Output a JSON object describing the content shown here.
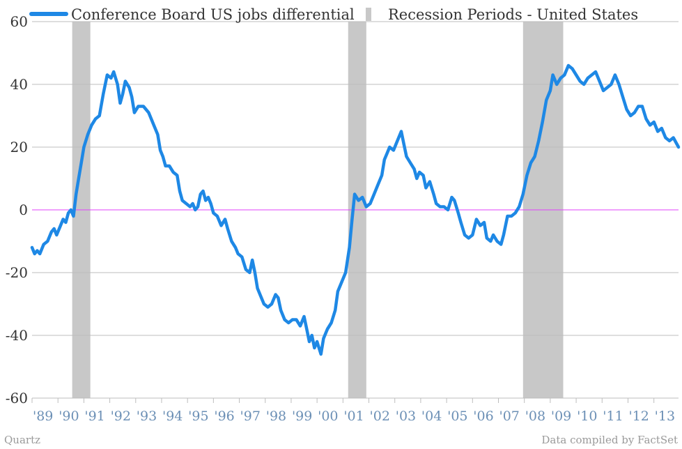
{
  "chart_data": {
    "type": "line",
    "legend": {
      "placement": "top",
      "series_label": "Conference Board US jobs differential",
      "recession_label": "Recession Periods - United States"
    },
    "footer": {
      "left": "Quartz",
      "right": "Data compiled by FactSet"
    },
    "colors": {
      "series": "#1e88e5",
      "recession": "#c8c8c8",
      "zero_line": "#e040fb",
      "grid": "#bdbdbd",
      "y_ticks": "#333333",
      "x_ticks": "#6b8fb5"
    },
    "grid": true,
    "ylim": [
      -60,
      60
    ],
    "xlim": [
      1989.0,
      2013.95
    ],
    "y_ticks": [
      60,
      40,
      20,
      0,
      -20,
      -40,
      -60
    ],
    "y_tick_labels": [
      "60",
      "40",
      "20",
      "0",
      "-20",
      "-40",
      "-60"
    ],
    "x_ticks": [
      {
        "value": 1989,
        "label": "'89"
      },
      {
        "value": 1990,
        "label": "'90"
      },
      {
        "value": 1991,
        "label": "'91"
      },
      {
        "value": 1992,
        "label": "'92"
      },
      {
        "value": 1993,
        "label": "'93"
      },
      {
        "value": 1994,
        "label": "'94"
      },
      {
        "value": 1995,
        "label": "'95"
      },
      {
        "value": 1996,
        "label": "'96"
      },
      {
        "value": 1997,
        "label": "'97"
      },
      {
        "value": 1998,
        "label": "'98"
      },
      {
        "value": 1999,
        "label": "'99"
      },
      {
        "value": 2000,
        "label": "'00"
      },
      {
        "value": 2001,
        "label": "'01"
      },
      {
        "value": 2002,
        "label": "'02"
      },
      {
        "value": 2003,
        "label": "'03"
      },
      {
        "value": 2004,
        "label": "'04"
      },
      {
        "value": 2005,
        "label": "'05"
      },
      {
        "value": 2006,
        "label": "'06"
      },
      {
        "value": 2007,
        "label": "'07"
      },
      {
        "value": 2008,
        "label": "'08"
      },
      {
        "value": 2009,
        "label": "'09"
      },
      {
        "value": 2010,
        "label": "'10"
      },
      {
        "value": 2011,
        "label": "'11"
      },
      {
        "value": 2012,
        "label": "'12"
      },
      {
        "value": 2013,
        "label": "'13"
      }
    ],
    "recessions": [
      {
        "start": 1990.55,
        "end": 1991.25
      },
      {
        "start": 2001.2,
        "end": 2001.9
      },
      {
        "start": 2007.95,
        "end": 2009.5
      }
    ],
    "series": [
      {
        "name": "Conference Board US jobs differential",
        "points": [
          [
            1989.0,
            -12
          ],
          [
            1989.1,
            -14
          ],
          [
            1989.2,
            -13
          ],
          [
            1989.3,
            -14
          ],
          [
            1989.45,
            -11
          ],
          [
            1989.6,
            -10
          ],
          [
            1989.75,
            -7
          ],
          [
            1989.85,
            -6
          ],
          [
            1989.95,
            -8
          ],
          [
            1990.1,
            -5
          ],
          [
            1990.2,
            -3
          ],
          [
            1990.3,
            -4
          ],
          [
            1990.4,
            -1
          ],
          [
            1990.5,
            0
          ],
          [
            1990.6,
            -2
          ],
          [
            1990.7,
            5
          ],
          [
            1990.8,
            10
          ],
          [
            1990.9,
            15
          ],
          [
            1991.0,
            20
          ],
          [
            1991.15,
            24
          ],
          [
            1991.3,
            27
          ],
          [
            1991.45,
            29
          ],
          [
            1991.6,
            30
          ],
          [
            1991.75,
            37
          ],
          [
            1991.9,
            43
          ],
          [
            1992.05,
            42
          ],
          [
            1992.15,
            44
          ],
          [
            1992.3,
            40
          ],
          [
            1992.4,
            34
          ],
          [
            1992.5,
            37
          ],
          [
            1992.6,
            41
          ],
          [
            1992.75,
            39
          ],
          [
            1992.85,
            36
          ],
          [
            1992.95,
            31
          ],
          [
            1993.1,
            33
          ],
          [
            1993.3,
            33
          ],
          [
            1993.5,
            31
          ],
          [
            1993.7,
            27
          ],
          [
            1993.85,
            24
          ],
          [
            1993.95,
            19
          ],
          [
            1994.05,
            17
          ],
          [
            1994.15,
            14
          ],
          [
            1994.3,
            14
          ],
          [
            1994.45,
            12
          ],
          [
            1994.6,
            11
          ],
          [
            1994.7,
            6
          ],
          [
            1994.8,
            3
          ],
          [
            1994.95,
            2
          ],
          [
            1995.1,
            1
          ],
          [
            1995.2,
            2
          ],
          [
            1995.3,
            0
          ],
          [
            1995.4,
            1
          ],
          [
            1995.5,
            5
          ],
          [
            1995.6,
            6
          ],
          [
            1995.7,
            3
          ],
          [
            1995.8,
            4
          ],
          [
            1995.9,
            2
          ],
          [
            1996.0,
            -1
          ],
          [
            1996.15,
            -2
          ],
          [
            1996.3,
            -5
          ],
          [
            1996.45,
            -3
          ],
          [
            1996.55,
            -6
          ],
          [
            1996.7,
            -10
          ],
          [
            1996.85,
            -12
          ],
          [
            1996.95,
            -14
          ],
          [
            1997.1,
            -15
          ],
          [
            1997.25,
            -19
          ],
          [
            1997.4,
            -20
          ],
          [
            1997.5,
            -16
          ],
          [
            1997.6,
            -20
          ],
          [
            1997.7,
            -25
          ],
          [
            1997.8,
            -27
          ],
          [
            1997.95,
            -30
          ],
          [
            1998.1,
            -31
          ],
          [
            1998.25,
            -30
          ],
          [
            1998.4,
            -27
          ],
          [
            1998.5,
            -28
          ],
          [
            1998.6,
            -32
          ],
          [
            1998.75,
            -35
          ],
          [
            1998.9,
            -36
          ],
          [
            1999.05,
            -35
          ],
          [
            1999.2,
            -35
          ],
          [
            1999.35,
            -37
          ],
          [
            1999.5,
            -34
          ],
          [
            1999.6,
            -38
          ],
          [
            1999.7,
            -42
          ],
          [
            1999.8,
            -40
          ],
          [
            1999.9,
            -44
          ],
          [
            2000.0,
            -42
          ],
          [
            2000.15,
            -46
          ],
          [
            2000.25,
            -41
          ],
          [
            2000.4,
            -38
          ],
          [
            2000.55,
            -36
          ],
          [
            2000.7,
            -32
          ],
          [
            2000.8,
            -26
          ],
          [
            2000.95,
            -23
          ],
          [
            2001.1,
            -20
          ],
          [
            2001.25,
            -12
          ],
          [
            2001.35,
            -3
          ],
          [
            2001.45,
            5
          ],
          [
            2001.6,
            3
          ],
          [
            2001.75,
            4
          ],
          [
            2001.9,
            1
          ],
          [
            2002.05,
            2
          ],
          [
            2002.2,
            5
          ],
          [
            2002.35,
            8
          ],
          [
            2002.5,
            11
          ],
          [
            2002.6,
            16
          ],
          [
            2002.7,
            18
          ],
          [
            2002.8,
            20
          ],
          [
            2002.95,
            19
          ],
          [
            2003.1,
            22
          ],
          [
            2003.25,
            25
          ],
          [
            2003.35,
            21
          ],
          [
            2003.45,
            17
          ],
          [
            2003.6,
            15
          ],
          [
            2003.75,
            13
          ],
          [
            2003.85,
            10
          ],
          [
            2003.95,
            12
          ],
          [
            2004.1,
            11
          ],
          [
            2004.2,
            7
          ],
          [
            2004.35,
            9
          ],
          [
            2004.5,
            5
          ],
          [
            2004.6,
            2
          ],
          [
            2004.75,
            1
          ],
          [
            2004.9,
            1
          ],
          [
            2005.05,
            0
          ],
          [
            2005.2,
            4
          ],
          [
            2005.3,
            3
          ],
          [
            2005.45,
            -1
          ],
          [
            2005.55,
            -4
          ],
          [
            2005.7,
            -8
          ],
          [
            2005.85,
            -9
          ],
          [
            2006.0,
            -8
          ],
          [
            2006.15,
            -3
          ],
          [
            2006.3,
            -5
          ],
          [
            2006.45,
            -4
          ],
          [
            2006.55,
            -9
          ],
          [
            2006.7,
            -10
          ],
          [
            2006.8,
            -8
          ],
          [
            2006.95,
            -10
          ],
          [
            2007.1,
            -11
          ],
          [
            2007.2,
            -8
          ],
          [
            2007.35,
            -2
          ],
          [
            2007.5,
            -2
          ],
          [
            2007.65,
            -1
          ],
          [
            2007.8,
            1
          ],
          [
            2007.95,
            5
          ],
          [
            2008.1,
            11
          ],
          [
            2008.25,
            15
          ],
          [
            2008.4,
            17
          ],
          [
            2008.55,
            22
          ],
          [
            2008.7,
            28
          ],
          [
            2008.85,
            35
          ],
          [
            2009.0,
            38
          ],
          [
            2009.1,
            43
          ],
          [
            2009.25,
            40
          ],
          [
            2009.4,
            42
          ],
          [
            2009.55,
            43
          ],
          [
            2009.7,
            46
          ],
          [
            2009.85,
            45
          ],
          [
            2010.0,
            43
          ],
          [
            2010.15,
            41
          ],
          [
            2010.3,
            40
          ],
          [
            2010.45,
            42
          ],
          [
            2010.6,
            43
          ],
          [
            2010.75,
            44
          ],
          [
            2010.9,
            41
          ],
          [
            2011.05,
            38
          ],
          [
            2011.2,
            39
          ],
          [
            2011.35,
            40
          ],
          [
            2011.5,
            43
          ],
          [
            2011.65,
            40
          ],
          [
            2011.8,
            36
          ],
          [
            2011.95,
            32
          ],
          [
            2012.1,
            30
          ],
          [
            2012.25,
            31
          ],
          [
            2012.4,
            33
          ],
          [
            2012.55,
            33
          ],
          [
            2012.7,
            29
          ],
          [
            2012.85,
            27
          ],
          [
            2013.0,
            28
          ],
          [
            2013.15,
            25
          ],
          [
            2013.3,
            26
          ],
          [
            2013.45,
            23
          ],
          [
            2013.6,
            22
          ],
          [
            2013.75,
            23
          ],
          [
            2013.95,
            20
          ]
        ]
      }
    ]
  }
}
